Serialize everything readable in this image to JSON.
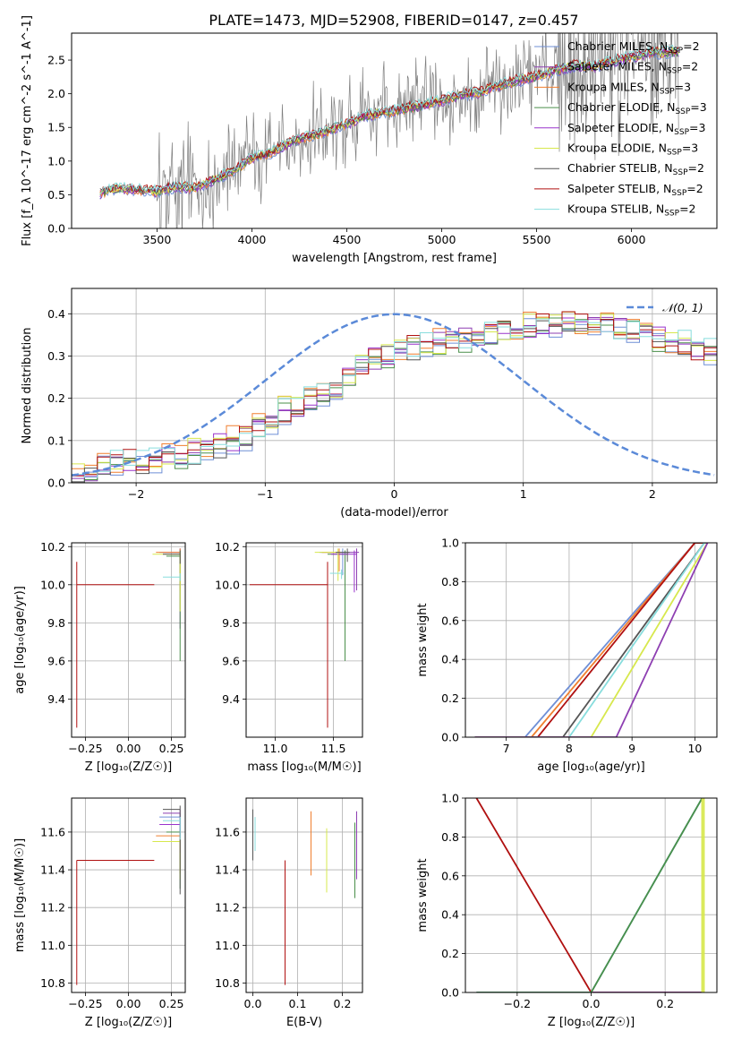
{
  "figure_title": "PLATE=1473, MJD=52908, FIBERID=0147, z=0.457",
  "model_colors": {
    "Chabrier MILES": "#6f8fd6",
    "Salpeter MILES": "#8e3fb2",
    "Kroupa MILES": "#f07f2f",
    "Chabrier ELODIE": "#4a8f4a",
    "Salpeter ELODIE": "#9933cc",
    "Kroupa ELODIE": "#d7e84d",
    "Chabrier STELIB": "#555555",
    "Salpeter STELIB": "#b01010",
    "Kroupa STELIB": "#88dddd",
    "observed": "#7f7f7f",
    "gaussian": "#5b8ad8"
  },
  "chart_data": [
    {
      "id": "spectrum",
      "type": "line",
      "xlabel": "wavelength [Angstrom, rest frame]",
      "ylabel": "Flux [f_λ 10^-17 erg cm^-2 s^-1 A^-1]",
      "xlim": [
        3050,
        6450
      ],
      "ylim": [
        0,
        2.9
      ],
      "xticks": [
        3500,
        4000,
        4500,
        5000,
        5500,
        6000
      ],
      "yticks": [
        0.0,
        0.5,
        1.0,
        1.5,
        2.0,
        2.5
      ],
      "legend_position": "top-right",
      "legend": [
        {
          "label": "Chabrier MILES, N",
          "sub": "SSP",
          "suffix": "=2",
          "model": "Chabrier MILES"
        },
        {
          "label": "Salpeter MILES, N",
          "sub": "SSP",
          "suffix": "=2",
          "model": "Salpeter MILES"
        },
        {
          "label": "Kroupa MILES, N",
          "sub": "SSP",
          "suffix": "=3",
          "model": "Kroupa MILES"
        },
        {
          "label": "Chabrier ELODIE, N",
          "sub": "SSP",
          "suffix": "=3",
          "model": "Chabrier ELODIE"
        },
        {
          "label": "Salpeter ELODIE, N",
          "sub": "SSP",
          "suffix": "=3",
          "model": "Salpeter ELODIE"
        },
        {
          "label": "Kroupa ELODIE, N",
          "sub": "SSP",
          "suffix": "=3",
          "model": "Kroupa ELODIE"
        },
        {
          "label": "Chabrier STELIB, N",
          "sub": "SSP",
          "suffix": "=2",
          "model": "Chabrier STELIB"
        },
        {
          "label": "Salpeter STELIB, N",
          "sub": "SSP",
          "suffix": "=2",
          "model": "Salpeter STELIB"
        },
        {
          "label": "Kroupa STELIB, N",
          "sub": "SSP",
          "suffix": "=2",
          "model": "Kroupa STELIB"
        }
      ],
      "continuum_points": [
        [
          3200,
          0.52
        ],
        [
          3300,
          0.6
        ],
        [
          3400,
          0.57
        ],
        [
          3500,
          0.55
        ],
        [
          3600,
          0.62
        ],
        [
          3700,
          0.6
        ],
        [
          3800,
          0.72
        ],
        [
          3900,
          0.85
        ],
        [
          4000,
          1.05
        ],
        [
          4100,
          1.12
        ],
        [
          4200,
          1.28
        ],
        [
          4300,
          1.37
        ],
        [
          4400,
          1.45
        ],
        [
          4500,
          1.55
        ],
        [
          4600,
          1.68
        ],
        [
          4700,
          1.72
        ],
        [
          4800,
          1.78
        ],
        [
          4900,
          1.83
        ],
        [
          5000,
          1.9
        ],
        [
          5100,
          1.98
        ],
        [
          5200,
          2.02
        ],
        [
          5300,
          2.12
        ],
        [
          5400,
          2.2
        ],
        [
          5500,
          2.25
        ],
        [
          5600,
          2.35
        ],
        [
          5700,
          2.42
        ],
        [
          5800,
          2.4
        ],
        [
          5900,
          2.48
        ],
        [
          6000,
          2.55
        ],
        [
          6100,
          2.6
        ],
        [
          6200,
          2.62
        ],
        [
          6250,
          2.62
        ]
      ],
      "observed_noise_start": 3500
    },
    {
      "id": "residuals",
      "type": "histogram",
      "xlabel": "(data-model)/error",
      "ylabel": "Normed distribution",
      "xlim": [
        -2.5,
        2.5
      ],
      "ylim": [
        0,
        0.46
      ],
      "xticks": [
        -2,
        -1,
        0,
        1,
        2
      ],
      "yticks": [
        0.0,
        0.1,
        0.2,
        0.3,
        0.4
      ],
      "legend_position": "top-right",
      "legend_label": "𝒩(0, 1)",
      "bin_edges_start": -2.5,
      "bin_width": 0.1,
      "base_heights": [
        0.02,
        0.03,
        0.04,
        0.045,
        0.05,
        0.05,
        0.055,
        0.06,
        0.065,
        0.07,
        0.08,
        0.09,
        0.1,
        0.11,
        0.13,
        0.15,
        0.17,
        0.18,
        0.2,
        0.21,
        0.22,
        0.25,
        0.27,
        0.29,
        0.3,
        0.31,
        0.32,
        0.33,
        0.33,
        0.34,
        0.34,
        0.35,
        0.35,
        0.36,
        0.36,
        0.37,
        0.37,
        0.37,
        0.38,
        0.37,
        0.37,
        0.37,
        0.36,
        0.36,
        0.35,
        0.34,
        0.33,
        0.33,
        0.32,
        0.31,
        0.3,
        0.3,
        0.3,
        0.29,
        0.28,
        0.27,
        0.26,
        0.24,
        0.22,
        0.2,
        0.19,
        0.17,
        0.16,
        0.15,
        0.14,
        0.13,
        0.12,
        0.11,
        0.1,
        0.09,
        0.08,
        0.07,
        0.07,
        0.06,
        0.06,
        0.05,
        0.05,
        0.04,
        0.035,
        0.03
      ]
    },
    {
      "id": "age_vs_Z",
      "type": "errorbar",
      "xlabel": "Z [log₁₀(Z/Z☉)]",
      "ylabel": "age  [log₁₀(age/yr)]",
      "xlim": [
        -0.33,
        0.33
      ],
      "ylim": [
        9.2,
        10.22
      ],
      "xticks": [
        -0.25,
        0.0,
        0.25
      ],
      "xtick_labels": [
        "−0.25",
        "0.00",
        "0.25"
      ],
      "yticks": [
        9.4,
        9.6,
        9.8,
        10.0,
        10.2
      ],
      "points": [
        {
          "model": "Salpeter STELIB",
          "x": -0.3,
          "y": 10.0,
          "xerr": [
            0,
            0.45
          ],
          "yerr": [
            0.75,
            0.12
          ]
        },
        {
          "model": "Chabrier MILES",
          "x": 0.3,
          "y": 10.17,
          "xerr": [
            0.12,
            0
          ],
          "yerr": [
            0.3,
            0.02
          ]
        },
        {
          "model": "Salpeter MILES",
          "x": 0.3,
          "y": 10.17,
          "xerr": [
            0.1,
            0
          ],
          "yerr": [
            0.4,
            0.02
          ]
        },
        {
          "model": "Kroupa MILES",
          "x": 0.3,
          "y": 10.17,
          "xerr": [
            0.14,
            0
          ],
          "yerr": [
            0.2,
            0.02
          ]
        },
        {
          "model": "Chabrier ELODIE",
          "x": 0.3,
          "y": 10.15,
          "xerr": [
            0.08,
            0
          ],
          "yerr": [
            0.55,
            0.03
          ]
        },
        {
          "model": "Kroupa ELODIE",
          "x": 0.3,
          "y": 10.16,
          "xerr": [
            0.16,
            0
          ],
          "yerr": [
            0.3,
            0.02
          ]
        },
        {
          "model": "Chabrier STELIB",
          "x": 0.3,
          "y": 10.16,
          "xerr": [
            0.1,
            0
          ],
          "yerr": [
            0.05,
            0.02
          ]
        },
        {
          "model": "Kroupa STELIB",
          "x": 0.3,
          "y": 10.04,
          "xerr": [
            0.1,
            0
          ],
          "yerr": [
            0.02,
            0.02
          ]
        }
      ]
    },
    {
      "id": "age_vs_mass",
      "type": "errorbar",
      "xlabel": "mass [log₁₀(M/M☉)]",
      "ylabel": "",
      "xlim": [
        10.75,
        11.75
      ],
      "ylim": [
        9.2,
        10.22
      ],
      "xticks": [
        11.0,
        11.5
      ],
      "yticks": [
        9.4,
        9.6,
        9.8,
        10.0,
        10.2
      ],
      "points": [
        {
          "model": "Salpeter STELIB",
          "x": 11.45,
          "y": 10.0,
          "xerr": [
            0.67,
            0
          ],
          "yerr": [
            0.75,
            0.12
          ]
        },
        {
          "model": "Chabrier MILES",
          "x": 11.58,
          "y": 10.17,
          "xerr": [
            0.2,
            0.02
          ],
          "yerr": [
            0.12,
            0.02
          ]
        },
        {
          "model": "Salpeter MILES",
          "x": 11.7,
          "y": 10.17,
          "xerr": [
            0.3,
            0.02
          ],
          "yerr": [
            0.2,
            0.02
          ]
        },
        {
          "model": "Kroupa MILES",
          "x": 11.55,
          "y": 10.17,
          "xerr": [
            0.15,
            0.02
          ],
          "yerr": [
            0.1,
            0.02
          ]
        },
        {
          "model": "Chabrier ELODIE",
          "x": 11.6,
          "y": 10.16,
          "xerr": [
            0.15,
            0.02
          ],
          "yerr": [
            0.56,
            0.02
          ]
        },
        {
          "model": "Salpeter ELODIE",
          "x": 11.68,
          "y": 10.16,
          "xerr": [
            0.2,
            0.02
          ],
          "yerr": [
            0.2,
            0.02
          ]
        },
        {
          "model": "Kroupa ELODIE",
          "x": 11.54,
          "y": 10.17,
          "xerr": [
            0.2,
            0.02
          ],
          "yerr": [
            0.15,
            0.02
          ]
        },
        {
          "model": "Chabrier STELIB",
          "x": 11.62,
          "y": 10.17,
          "xerr": [
            0.1,
            0.02
          ],
          "yerr": [
            0.05,
            0.02
          ]
        },
        {
          "model": "Kroupa STELIB",
          "x": 11.57,
          "y": 10.06,
          "xerr": [
            0.1,
            0.02
          ],
          "yerr": [
            0.03,
            0.02
          ]
        }
      ]
    },
    {
      "id": "age_cdf",
      "type": "line",
      "xlabel": "age  [log₁₀(age/yr)]",
      "ylabel": "mass weight",
      "xlim": [
        6.35,
        10.35
      ],
      "ylim": [
        0,
        1
      ],
      "xticks": [
        7,
        8,
        9,
        10
      ],
      "yticks": [
        0.0,
        0.2,
        0.4,
        0.6,
        0.8,
        1.0
      ],
      "series": [
        {
          "model": "Chabrier MILES",
          "x": [
            6.5,
            7.3,
            10.0,
            10.2
          ],
          "y": [
            0,
            0,
            1,
            1
          ]
        },
        {
          "model": "Kroupa MILES",
          "x": [
            6.5,
            7.4,
            10.0,
            10.2
          ],
          "y": [
            0,
            0,
            1,
            1
          ]
        },
        {
          "model": "Salpeter STELIB",
          "x": [
            6.5,
            7.5,
            10.0,
            10.2
          ],
          "y": [
            0,
            0,
            1,
            1
          ]
        },
        {
          "model": "Chabrier STELIB",
          "x": [
            6.5,
            7.9,
            10.15,
            10.2
          ],
          "y": [
            0,
            0,
            1,
            1
          ]
        },
        {
          "model": "Kroupa STELIB",
          "x": [
            6.5,
            8.0,
            10.15,
            10.2
          ],
          "y": [
            0,
            0,
            1,
            1
          ]
        },
        {
          "model": "Kroupa ELODIE",
          "x": [
            6.5,
            8.35,
            10.2,
            10.2
          ],
          "y": [
            0,
            0,
            1,
            1
          ]
        },
        {
          "model": "Salpeter MILES",
          "x": [
            6.5,
            8.75,
            10.2,
            10.2
          ],
          "y": [
            0,
            0,
            1,
            1
          ]
        }
      ]
    },
    {
      "id": "mass_vs_Z",
      "type": "errorbar",
      "xlabel": "Z [log₁₀(Z/Z☉)]",
      "ylabel": "mass [log₁₀(M/M☉)]",
      "xlim": [
        -0.33,
        0.33
      ],
      "ylim": [
        10.75,
        11.78
      ],
      "xticks": [
        -0.25,
        0.0,
        0.25
      ],
      "xtick_labels": [
        "−0.25",
        "0.00",
        "0.25"
      ],
      "yticks": [
        10.8,
        11.0,
        11.2,
        11.4,
        11.6
      ],
      "points": [
        {
          "model": "Salpeter STELIB",
          "x": -0.3,
          "y": 11.45,
          "xerr": [
            0,
            0.45
          ],
          "yerr": [
            0.66,
            0
          ]
        },
        {
          "model": "Chabrier MILES",
          "x": 0.3,
          "y": 11.68,
          "xerr": [
            0.12,
            0
          ],
          "yerr": [
            0.1,
            0.02
          ]
        },
        {
          "model": "Salpeter MILES",
          "x": 0.3,
          "y": 11.7,
          "xerr": [
            0.1,
            0
          ],
          "yerr": [
            0.1,
            0.02
          ]
        },
        {
          "model": "Kroupa MILES",
          "x": 0.3,
          "y": 11.58,
          "xerr": [
            0.14,
            0
          ],
          "yerr": [
            0.2,
            0.02
          ]
        },
        {
          "model": "Chabrier ELODIE",
          "x": 0.3,
          "y": 11.6,
          "xerr": [
            0.08,
            0
          ],
          "yerr": [
            0.3,
            0.02
          ]
        },
        {
          "model": "Salpeter ELODIE",
          "x": 0.3,
          "y": 11.64,
          "xerr": [
            0.12,
            0
          ],
          "yerr": [
            0.15,
            0.02
          ]
        },
        {
          "model": "Kroupa ELODIE",
          "x": 0.3,
          "y": 11.55,
          "xerr": [
            0.16,
            0
          ],
          "yerr": [
            0.2,
            0.02
          ]
        },
        {
          "model": "Chabrier STELIB",
          "x": 0.3,
          "y": 11.72,
          "xerr": [
            0.1,
            0
          ],
          "yerr": [
            0.45,
            0.02
          ]
        },
        {
          "model": "Kroupa STELIB",
          "x": 0.3,
          "y": 11.66,
          "xerr": [
            0.1,
            0
          ],
          "yerr": [
            0.1,
            0.02
          ]
        }
      ]
    },
    {
      "id": "mass_vs_ebv",
      "type": "errorbar",
      "xlabel": "E(B-V)",
      "ylabel": "",
      "xlim": [
        -0.015,
        0.245
      ],
      "ylim": [
        10.75,
        11.78
      ],
      "xticks": [
        0.0,
        0.1,
        0.2
      ],
      "yticks": [
        10.8,
        11.0,
        11.2,
        11.4,
        11.6
      ],
      "points": [
        {
          "model": "Chabrier STELIB",
          "x": 0.0,
          "y": 11.6,
          "xerr": [
            0,
            0
          ],
          "yerr": [
            0.15,
            0.12
          ]
        },
        {
          "model": "Kroupa STELIB",
          "x": 0.005,
          "y": 11.6,
          "xerr": [
            0,
            0
          ],
          "yerr": [
            0.1,
            0.08
          ]
        },
        {
          "model": "Salpeter STELIB",
          "x": 0.072,
          "y": 11.1,
          "xerr": [
            0,
            0
          ],
          "yerr": [
            0.31,
            0.35
          ]
        },
        {
          "model": "Kroupa MILES",
          "x": 0.13,
          "y": 11.55,
          "xerr": [
            0,
            0
          ],
          "yerr": [
            0.18,
            0.16
          ]
        },
        {
          "model": "Kroupa ELODIE",
          "x": 0.165,
          "y": 11.45,
          "xerr": [
            0,
            0
          ],
          "yerr": [
            0.17,
            0.17
          ]
        },
        {
          "model": "Chabrier ELODIE",
          "x": 0.228,
          "y": 11.45,
          "xerr": [
            0,
            0
          ],
          "yerr": [
            0.2,
            0.2
          ]
        },
        {
          "model": "Salpeter MILES",
          "x": 0.232,
          "y": 11.55,
          "xerr": [
            0,
            0
          ],
          "yerr": [
            0.2,
            0.16
          ]
        }
      ]
    },
    {
      "id": "Z_cdf",
      "type": "line",
      "xlabel": "Z [log₁₀(Z/Z☉)]",
      "ylabel": "mass weight",
      "xlim": [
        -0.34,
        0.34
      ],
      "ylim": [
        0,
        1
      ],
      "xticks": [
        -0.2,
        0.0,
        0.2
      ],
      "xtick_labels": [
        "−0.2",
        "0.0",
        "0.2"
      ],
      "yticks": [
        0.0,
        0.2,
        0.4,
        0.6,
        0.8,
        1.0
      ],
      "series": [
        {
          "model": "Salpeter STELIB",
          "x": [
            -0.31,
            0.0,
            0.3
          ],
          "y": [
            1,
            0,
            0
          ]
        },
        {
          "model": "Salpeter MILES",
          "x": [
            -0.31,
            0.0,
            0.3
          ],
          "y": [
            0,
            0,
            0
          ]
        },
        {
          "model": "Chabrier MILES",
          "x": [
            -0.31,
            0.0,
            0.3
          ],
          "y": [
            0,
            0,
            1
          ]
        },
        {
          "model": "Kroupa STELIB",
          "x": [
            -0.31,
            0.0,
            0.3
          ],
          "y": [
            0,
            0,
            1
          ]
        },
        {
          "model": "Chabrier ELODIE",
          "x": [
            -0.31,
            0.0,
            0.3
          ],
          "y": [
            0,
            0,
            1
          ]
        },
        {
          "model": "Kroupa ELODIE",
          "x": [
            0.3,
            0.3
          ],
          "y": [
            0,
            1
          ]
        },
        {
          "model": "Kroupa ELODIE",
          "x": [
            0.305,
            0.305
          ],
          "y": [
            0,
            1
          ]
        }
      ]
    }
  ]
}
